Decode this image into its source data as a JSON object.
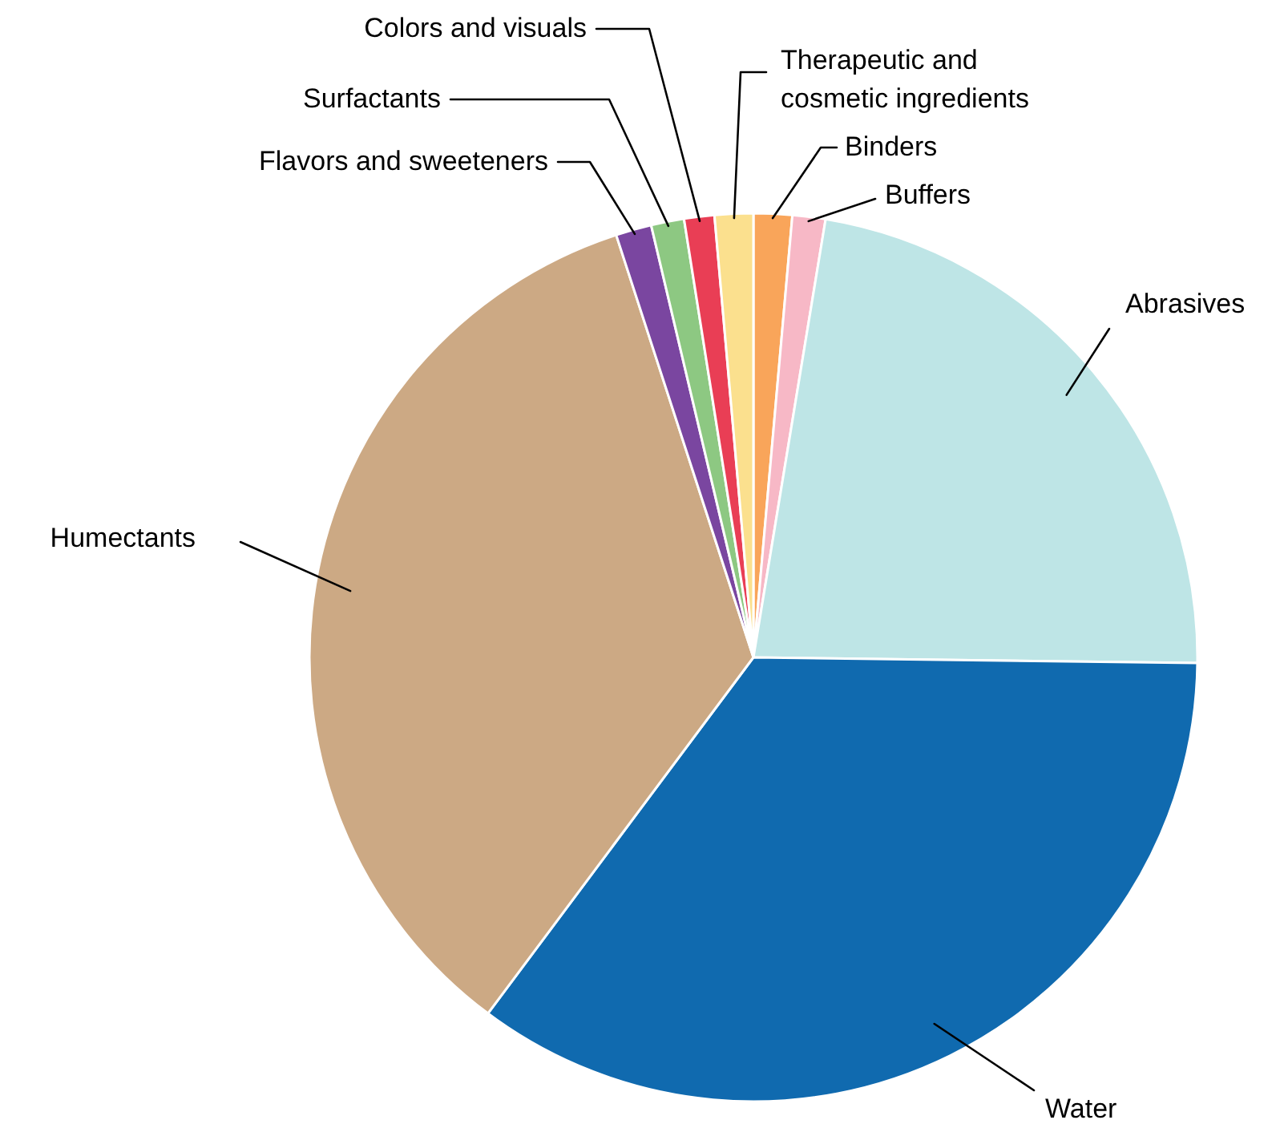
{
  "chart_data": {
    "type": "pie",
    "categories": [
      "Binders",
      "Buffers",
      "Abrasives",
      "Water",
      "Humectants",
      "Flavors and sweeteners",
      "Surfactants",
      "Colors and visuals",
      "Therapeutic and cosmetic ingredients"
    ],
    "values": [
      1.4,
      1.2,
      22.6,
      35.0,
      34.8,
      1.3,
      1.2,
      1.1,
      1.4
    ],
    "colors": [
      "#f9a55a",
      "#f7b8c6",
      "#bee5e6",
      "#106aaf",
      "#cca984",
      "#7a46a0",
      "#8dc882",
      "#e93e55",
      "#fbe08e"
    ]
  }
}
